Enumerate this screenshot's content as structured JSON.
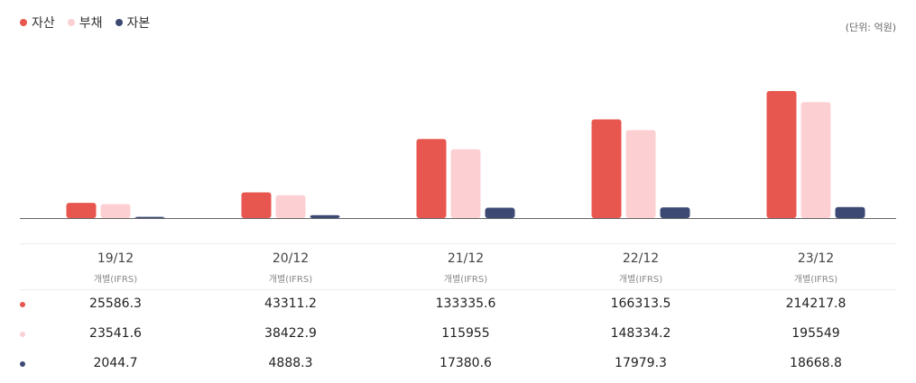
{
  "legend": [
    {
      "label": "자산",
      "color": "#e8574f"
    },
    {
      "label": "부채",
      "color": "#fcd0d3"
    },
    {
      "label": "자본",
      "color": "#3c4a73"
    }
  ],
  "unit_label": "(단위: 억원)",
  "periods": [
    "19/12",
    "20/12",
    "21/12",
    "22/12",
    "23/12"
  ],
  "period_sub": [
    "개별(IFRS)",
    "개별(IFRS)",
    "개별(IFRS)",
    "개별(IFRS)",
    "개별(IFRS)"
  ],
  "rows": [
    {
      "values": [
        "25586.3",
        "43311.2",
        "133335.6",
        "166313.5",
        "214217.8"
      ]
    },
    {
      "values": [
        "23541.6",
        "38422.9",
        "115955",
        "148334.2",
        "195549"
      ]
    },
    {
      "values": [
        "2044.7",
        "4888.3",
        "17380.6",
        "17979.3",
        "18668.8"
      ]
    }
  ],
  "chart_data": {
    "type": "bar",
    "categories": [
      "19/12",
      "20/12",
      "21/12",
      "22/12",
      "23/12"
    ],
    "series": [
      {
        "name": "자산",
        "values": [
          25586.3,
          43311.2,
          133335.6,
          166313.5,
          214217.8
        ],
        "color": "#e8574f"
      },
      {
        "name": "부채",
        "values": [
          23541.6,
          38422.9,
          115955,
          148334.2,
          195549
        ],
        "color": "#fcd0d3"
      },
      {
        "name": "자본",
        "values": [
          2044.7,
          4888.3,
          17380.6,
          17979.3,
          18668.8
        ],
        "color": "#3c4a73"
      }
    ],
    "ylim": [
      0,
      214217.8
    ],
    "grid": false,
    "legend_position": "top-left"
  }
}
